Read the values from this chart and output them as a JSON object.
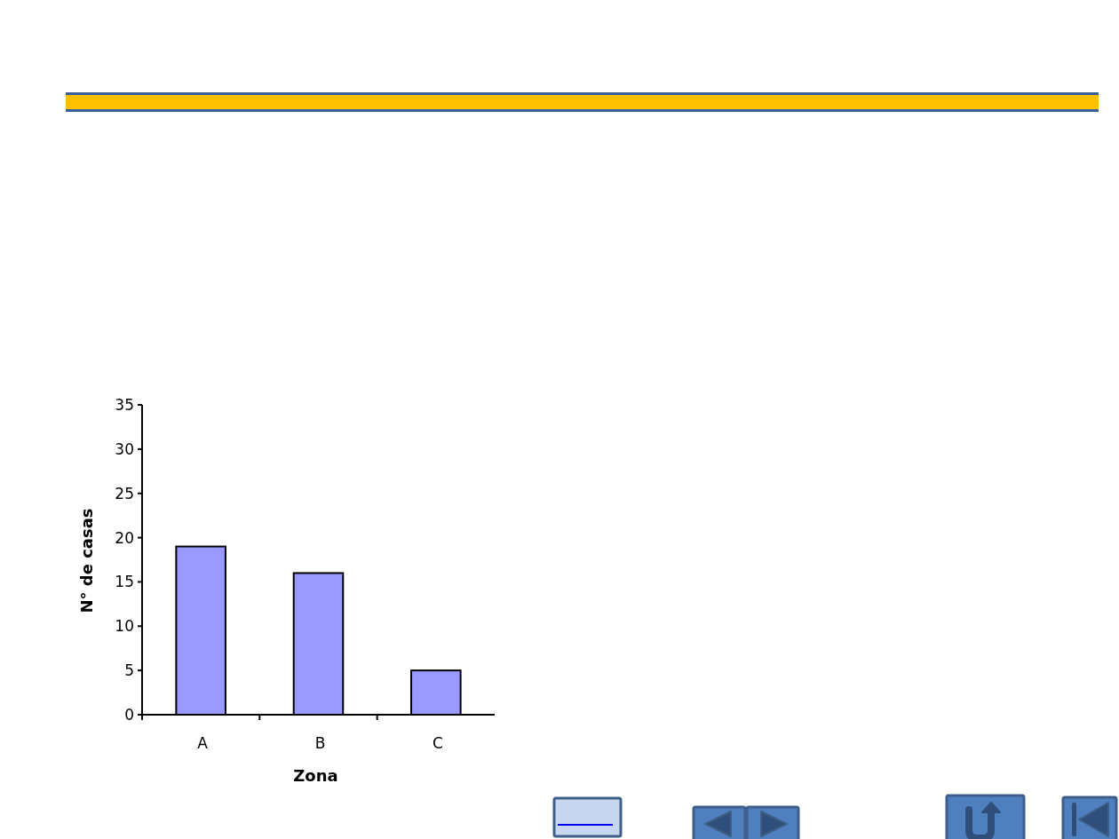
{
  "chart_data": {
    "type": "bar",
    "categories": [
      "A",
      "B",
      "C"
    ],
    "values": [
      19,
      16,
      5
    ],
    "color": "#9999ff",
    "xlabel": "Zona",
    "ylabel": "N° de casas",
    "ylim": [
      0,
      35
    ],
    "yticks": [
      0,
      5,
      10,
      15,
      20,
      25,
      30,
      35
    ]
  }
}
